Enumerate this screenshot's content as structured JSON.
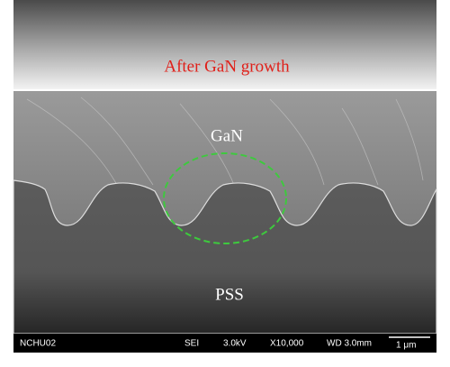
{
  "labels": {
    "top": "After GaN growth",
    "layer": "GaN",
    "substrate": "PSS"
  },
  "footer": {
    "id": "NCHU02",
    "detector": "SEI",
    "voltage": "3.0kV",
    "magnification": "X10,000",
    "working_distance": "WD 3.0mm",
    "scale": "1 μm"
  }
}
